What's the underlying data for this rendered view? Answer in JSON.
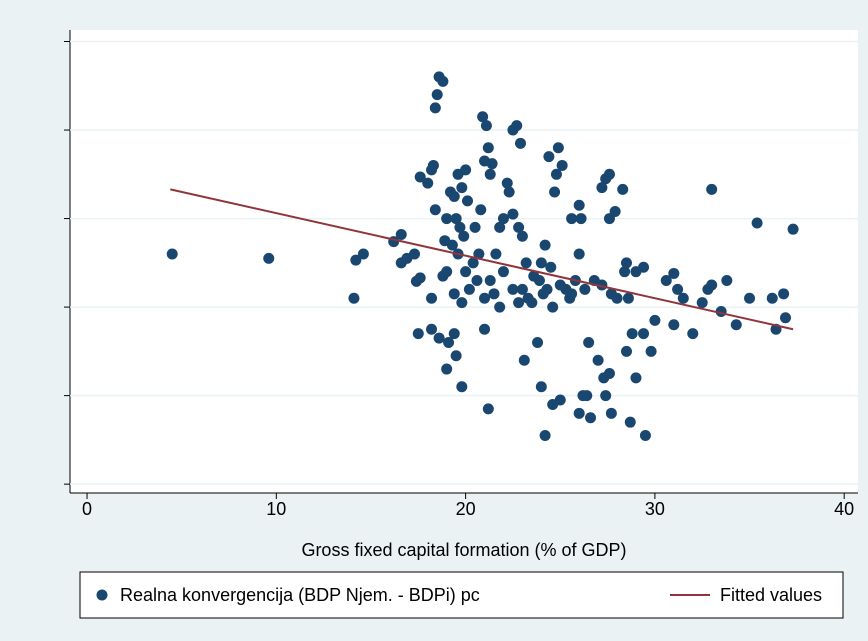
{
  "chart_data": {
    "type": "scatter",
    "x_label": "Gross fixed capital formation (% of GDP)",
    "xlim": [
      -0.9,
      40.73
    ],
    "xticks": [
      0,
      10,
      20,
      30,
      40
    ],
    "ylim": [
      -2.1,
      3.13
    ],
    "yticks": [
      -2,
      -1,
      0,
      1,
      2,
      3
    ],
    "grid": true,
    "legend": "bottom",
    "series": [
      {
        "name": "Realna konvergencija (BDP Njem. - BDPi) pc",
        "color": "#1a476f",
        "kind": "scatter",
        "x": [
          4.5,
          9.6,
          14.2,
          14.6,
          14.1,
          16.2,
          16.6,
          16.6,
          16.9,
          17.3,
          17.4,
          17.6,
          17.5,
          17.6,
          18.0,
          18.2,
          18.3,
          18.2,
          18.2,
          18.5,
          18.4,
          18.6,
          18.8,
          18.4,
          18.6,
          18.9,
          19.0,
          19.0,
          19.1,
          19.4,
          19.5,
          19.8,
          19.2,
          19.4,
          19.6,
          19.8,
          20.0,
          19.5,
          19.7,
          19.9,
          20.1,
          19.3,
          19.6,
          20.0,
          20.2,
          19.4,
          19.8,
          20.4,
          20.6,
          20.5,
          20.8,
          20.9,
          21.1,
          21.2,
          21.0,
          21.4,
          21.3,
          21.0,
          21.2,
          21.0,
          21.3,
          21.5,
          21.6,
          21.8,
          22.0,
          22.2,
          22.3,
          22.5,
          22.7,
          22.9,
          22.5,
          22.8,
          23.0,
          23.2,
          23.0,
          23.3,
          23.5,
          23.1,
          23.8,
          23.9,
          24.0,
          24.2,
          24.5,
          24.3,
          24.6,
          24.7,
          24.8,
          24.9,
          25.1,
          24.4,
          24.2,
          24.0,
          24.6,
          25.0,
          25.5,
          25.8,
          26.0,
          26.1,
          26.0,
          25.6,
          26.2,
          26.4,
          26.6,
          26.0,
          26.5,
          27.0,
          27.3,
          27.6,
          27.4,
          27.7,
          28.7,
          29.5,
          29.4,
          28.8,
          29.0,
          28.5,
          27.2,
          27.4,
          27.6,
          28.3,
          27.6,
          27.9,
          28.5,
          28.4,
          28.6,
          28.0,
          29.0,
          29.4,
          30.0,
          29.8,
          30.6,
          31.0,
          31.2,
          31.5,
          31.0,
          32.0,
          32.5,
          32.8,
          33.0,
          33.0,
          33.5,
          33.8,
          34.3,
          35.0,
          35.4,
          36.2,
          36.4,
          36.8,
          36.9,
          37.3,
          22.5,
          22.8,
          23.6,
          24.1,
          25.0,
          25.3,
          25.6,
          26.3,
          26.8,
          27.2,
          27.7,
          22.0,
          21.8,
          20.7,
          19.0,
          18.8
        ],
        "values": [
          0.6,
          0.55,
          0.53,
          0.6,
          0.1,
          0.74,
          0.82,
          0.5,
          0.55,
          0.6,
          0.29,
          0.33,
          -0.3,
          1.47,
          1.4,
          1.55,
          1.6,
          0.1,
          -0.25,
          2.4,
          2.25,
          2.6,
          2.55,
          1.1,
          -0.35,
          0.75,
          1.0,
          -0.7,
          -0.4,
          -0.3,
          -0.55,
          -0.9,
          1.3,
          1.25,
          1.5,
          1.35,
          1.55,
          1.0,
          0.9,
          0.8,
          1.2,
          0.7,
          0.6,
          0.4,
          0.2,
          0.15,
          0.05,
          0.5,
          0.3,
          0.9,
          1.1,
          2.15,
          2.05,
          1.8,
          1.65,
          1.62,
          1.5,
          -0.25,
          -1.15,
          0.1,
          0.3,
          0.15,
          0.6,
          0.9,
          1.0,
          1.4,
          1.3,
          2.0,
          2.05,
          1.85,
          1.05,
          0.9,
          0.8,
          0.5,
          0.2,
          0.1,
          0.05,
          -0.6,
          -0.4,
          0.3,
          0.5,
          0.7,
          0.45,
          0.2,
          0.0,
          1.3,
          1.5,
          1.8,
          1.6,
          1.7,
          -1.45,
          -0.9,
          -1.1,
          -1.05,
          0.1,
          0.3,
          0.6,
          1.0,
          1.15,
          1.0,
          -1.0,
          -1.0,
          -1.25,
          -1.2,
          -0.4,
          -0.6,
          -0.8,
          -0.75,
          -1.0,
          -1.2,
          -1.3,
          -1.45,
          -0.3,
          -0.3,
          -0.8,
          -0.5,
          1.35,
          1.45,
          1.5,
          1.33,
          1.0,
          1.08,
          0.5,
          0.4,
          0.1,
          0.1,
          0.4,
          0.45,
          -0.15,
          -0.5,
          0.3,
          0.38,
          0.2,
          0.1,
          -0.2,
          -0.3,
          0.05,
          0.2,
          0.25,
          1.33,
          -0.05,
          0.3,
          -0.2,
          0.1,
          0.95,
          0.1,
          -0.25,
          0.15,
          -0.12,
          0.88,
          0.2,
          0.05,
          0.35,
          0.15,
          0.25,
          0.2,
          0.15,
          0.2,
          0.3,
          0.25,
          0.15,
          0.4,
          0.0,
          0.6,
          0.4,
          0.35
        ]
      },
      {
        "name": "Fitted values",
        "color": "#90353b",
        "kind": "line",
        "x": [
          4.4,
          37.3
        ],
        "values": [
          1.33,
          -0.25
        ]
      }
    ]
  }
}
